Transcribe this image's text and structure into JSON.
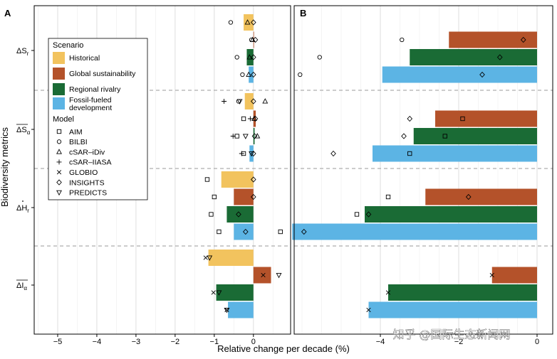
{
  "chart_data": {
    "type": "bar",
    "title": "",
    "xlabel": "Relative change per decade (%)",
    "ylabel": "Biodiversity metrics",
    "watermark": "知乎 @国际生态新闻网",
    "colors": {
      "Historical": "#F2C35E",
      "Global sustainability": "#B4522A",
      "Regional rivalry": "#1A6B35",
      "Fossil-fueled development": "#5CB4E4"
    },
    "scenario_legend": {
      "title": "Scenario",
      "items": [
        {
          "name": "Historical",
          "label": "Historical"
        },
        {
          "name": "Global sustainability",
          "label": "Global sustainability"
        },
        {
          "name": "Regional rivalry",
          "label": "Regional rivalry"
        },
        {
          "name": "Fossil-fueled development",
          "label": "Fossil-fueled development"
        }
      ]
    },
    "model_legend": {
      "title": "Model",
      "items": [
        {
          "model": "AIM",
          "marker": "square"
        },
        {
          "model": "BILBI",
          "marker": "circle"
        },
        {
          "model": "cSAR–iDiv",
          "marker": "triangle"
        },
        {
          "model": "cSAR–IIASA",
          "marker": "plus"
        },
        {
          "model": "GLOBIO",
          "marker": "x"
        },
        {
          "model": "INSIGHTS",
          "marker": "diamond"
        },
        {
          "model": "PREDICTS",
          "marker": "triangle-down"
        }
      ]
    },
    "metrics": [
      {
        "key": "dSr",
        "label": "ΔS",
        "sub": "r",
        "over": "",
        "dot": false
      },
      {
        "key": "dSa",
        "label": "ΔS",
        "sub": "α",
        "over": "ΔS",
        "dot": false
      },
      {
        "key": "dHr",
        "label": "ΔH",
        "sub": "r",
        "over": "",
        "dot": true
      },
      {
        "key": "dIa",
        "label": "ΔI",
        "sub": "α",
        "over": "ΔI",
        "dot": false
      }
    ],
    "panels": [
      {
        "letter": "A",
        "xlim": [
          -5.6,
          0.95
        ],
        "ticks": [
          -5,
          -4,
          -3,
          -2,
          -1,
          0
        ],
        "tick_labels": [
          "−5",
          "−4",
          "−3",
          "−2",
          "−1",
          "0"
        ],
        "groups": [
          {
            "metric": "dSr",
            "bars": [
              {
                "scenario": "Historical",
                "value": -0.25,
                "points": [
                  {
                    "m": "circle",
                    "v": -0.58
                  },
                  {
                    "m": "triangle",
                    "v": -0.15
                  },
                  {
                    "m": "diamond",
                    "v": 0.0
                  }
                ]
              },
              {
                "scenario": "Global sustainability",
                "value": 0.0,
                "points": [
                  {
                    "m": "circle",
                    "v": -0.05
                  },
                  {
                    "m": "triangle",
                    "v": -0.02
                  },
                  {
                    "m": "diamond",
                    "v": 0.05
                  }
                ]
              },
              {
                "scenario": "Regional rivalry",
                "value": -0.17,
                "points": [
                  {
                    "m": "circle",
                    "v": -0.42
                  },
                  {
                    "m": "triangle",
                    "v": -0.1
                  },
                  {
                    "m": "diamond",
                    "v": 0.0
                  }
                ]
              },
              {
                "scenario": "Fossil-fueled development",
                "value": -0.12,
                "points": [
                  {
                    "m": "circle",
                    "v": -0.28
                  },
                  {
                    "m": "triangle",
                    "v": -0.12
                  },
                  {
                    "m": "diamond",
                    "v": 0.0
                  }
                ]
              }
            ]
          },
          {
            "metric": "dSa",
            "bars": [
              {
                "scenario": "Historical",
                "value": -0.22,
                "points": [
                  {
                    "m": "plus",
                    "v": -0.75
                  },
                  {
                    "m": "triangle-down",
                    "v": -0.35
                  },
                  {
                    "m": "diamond",
                    "v": 0.0
                  },
                  {
                    "m": "triangle",
                    "v": 0.3
                  },
                  {
                    "m": "circle",
                    "v": -0.38
                  }
                ]
              },
              {
                "scenario": "Global sustainability",
                "value": 0.06,
                "points": [
                  {
                    "m": "square",
                    "v": -0.25
                  },
                  {
                    "m": "plus",
                    "v": -0.08
                  },
                  {
                    "m": "triangle",
                    "v": 0.02
                  },
                  {
                    "m": "diamond",
                    "v": 0.05
                  }
                ]
              },
              {
                "scenario": "Regional rivalry",
                "value": 0.03,
                "points": [
                  {
                    "m": "plus",
                    "v": -0.52
                  },
                  {
                    "m": "square",
                    "v": -0.42
                  },
                  {
                    "m": "triangle-down",
                    "v": -0.2
                  },
                  {
                    "m": "triangle",
                    "v": 0.1
                  },
                  {
                    "m": "diamond",
                    "v": 0.03
                  }
                ]
              },
              {
                "scenario": "Fossil-fueled development",
                "value": -0.1,
                "points": [
                  {
                    "m": "plus",
                    "v": -0.3
                  },
                  {
                    "m": "square",
                    "v": -0.25
                  },
                  {
                    "m": "triangle-down",
                    "v": -0.05
                  },
                  {
                    "m": "diamond",
                    "v": 0.0
                  }
                ]
              }
            ]
          },
          {
            "metric": "dHr",
            "bars": [
              {
                "scenario": "Historical",
                "value": -0.82,
                "points": [
                  {
                    "m": "square",
                    "v": -1.18
                  },
                  {
                    "m": "diamond",
                    "v": 0.0
                  }
                ]
              },
              {
                "scenario": "Global sustainability",
                "value": -0.5,
                "points": [
                  {
                    "m": "square",
                    "v": -1.0
                  },
                  {
                    "m": "diamond",
                    "v": 0.0
                  }
                ]
              },
              {
                "scenario": "Regional rivalry",
                "value": -0.68,
                "points": [
                  {
                    "m": "square",
                    "v": -1.08
                  },
                  {
                    "m": "diamond",
                    "v": -0.38
                  }
                ]
              },
              {
                "scenario": "Fossil-fueled development",
                "value": -0.5,
                "points": [
                  {
                    "m": "square",
                    "v": -0.88
                  },
                  {
                    "m": "diamond",
                    "v": -0.2
                  }
                ]
              }
            ]
          },
          {
            "metric": "dIa",
            "bars": [
              {
                "scenario": "Historical",
                "value": -1.15,
                "points": [
                  {
                    "m": "x",
                    "v": -1.22
                  },
                  {
                    "m": "triangle-down",
                    "v": -1.12
                  }
                ]
              },
              {
                "scenario": "Global sustainability",
                "value": 0.45,
                "points": [
                  {
                    "m": "x",
                    "v": 0.25
                  },
                  {
                    "m": "triangle-down",
                    "v": 0.65
                  }
                ]
              },
              {
                "scenario": "Regional rivalry",
                "value": -0.95,
                "points": [
                  {
                    "m": "x",
                    "v": -1.02
                  },
                  {
                    "m": "triangle-down",
                    "v": -0.88
                  }
                ]
              },
              {
                "scenario": "Fossil-fueled development",
                "value": -0.65,
                "points": [
                  {
                    "m": "x",
                    "v": -0.68
                  },
                  {
                    "m": "triangle-down",
                    "v": -0.68
                  }
                ]
              }
            ]
          }
        ]
      },
      {
        "letter": "B",
        "xlim": [
          -6.2,
          0.4
        ],
        "ticks": [
          -4,
          -2,
          0
        ],
        "tick_labels": [
          "−4",
          "−2",
          "0"
        ],
        "groups": [
          {
            "metric": "dSr",
            "bars": [
              {
                "scenario": "Historical",
                "value": null,
                "points": []
              },
              {
                "scenario": "Global sustainability",
                "value": -2.25,
                "points": [
                  {
                    "m": "circle",
                    "v": -3.45
                  },
                  {
                    "m": "diamond",
                    "v": -0.35
                  }
                ]
              },
              {
                "scenario": "Regional rivalry",
                "value": -3.25,
                "points": [
                  {
                    "m": "circle",
                    "v": -5.55
                  },
                  {
                    "m": "diamond",
                    "v": -0.95
                  }
                ]
              },
              {
                "scenario": "Fossil-fueled development",
                "value": -3.95,
                "points": [
                  {
                    "m": "circle",
                    "v": -6.05
                  },
                  {
                    "m": "diamond",
                    "v": -1.4
                  }
                ]
              }
            ]
          },
          {
            "metric": "dSa",
            "bars": [
              {
                "scenario": "Historical",
                "value": null,
                "points": []
              },
              {
                "scenario": "Global sustainability",
                "value": -2.6,
                "points": [
                  {
                    "m": "diamond",
                    "v": -3.25
                  },
                  {
                    "m": "square",
                    "v": -1.9
                  }
                ]
              },
              {
                "scenario": "Regional rivalry",
                "value": -3.15,
                "points": [
                  {
                    "m": "diamond",
                    "v": -3.4
                  },
                  {
                    "m": "square",
                    "v": -2.35
                  }
                ]
              },
              {
                "scenario": "Fossil-fueled development",
                "value": -4.2,
                "points": [
                  {
                    "m": "diamond",
                    "v": -5.2
                  },
                  {
                    "m": "square",
                    "v": -3.25
                  }
                ]
              }
            ]
          },
          {
            "metric": "dHr",
            "bars": [
              {
                "scenario": "Historical",
                "value": null,
                "points": []
              },
              {
                "scenario": "Global sustainability",
                "value": -2.85,
                "points": [
                  {
                    "m": "square",
                    "v": -3.8
                  },
                  {
                    "m": "diamond",
                    "v": -1.75
                  }
                ]
              },
              {
                "scenario": "Regional rivalry",
                "value": -4.4,
                "points": [
                  {
                    "m": "square",
                    "v": -4.6
                  },
                  {
                    "m": "diamond",
                    "v": -4.3
                  }
                ]
              },
              {
                "scenario": "Fossil-fueled development",
                "value": -6.25,
                "points": [
                  {
                    "m": "square",
                    "v": -6.55
                  },
                  {
                    "m": "diamond",
                    "v": -5.95
                  }
                ]
              }
            ]
          },
          {
            "metric": "dIa",
            "bars": [
              {
                "scenario": "Historical",
                "value": null,
                "points": []
              },
              {
                "scenario": "Global sustainability",
                "value": -1.15,
                "points": [
                  {
                    "m": "x",
                    "v": -1.15
                  }
                ]
              },
              {
                "scenario": "Regional rivalry",
                "value": -3.8,
                "points": [
                  {
                    "m": "x",
                    "v": -3.8
                  }
                ]
              },
              {
                "scenario": "Fossil-fueled development",
                "value": -4.3,
                "points": [
                  {
                    "m": "x",
                    "v": -4.3
                  }
                ]
              }
            ]
          }
        ]
      }
    ]
  }
}
